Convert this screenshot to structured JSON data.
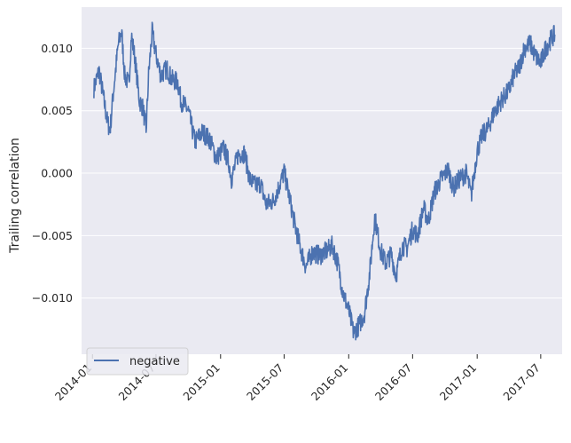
{
  "chart_data": {
    "type": "line",
    "title": "",
    "xlabel": "",
    "ylabel": "Trailing correlation",
    "xlim": [
      "2013-12-01",
      "2017-08-31"
    ],
    "ylim": [
      -0.0145,
      0.0133
    ],
    "grid": true,
    "legend_position": "lower-left",
    "colors": {
      "series": "#4c72b0",
      "plot_background": "#eaeaf2",
      "grid": "#ffffff"
    },
    "x_ticks": [
      {
        "value": "2014-01-01",
        "label": "2014-01"
      },
      {
        "value": "2014-07-01",
        "label": "2014-07"
      },
      {
        "value": "2015-01-01",
        "label": "2015-01"
      },
      {
        "value": "2015-07-01",
        "label": "2015-07"
      },
      {
        "value": "2016-01-01",
        "label": "2016-01"
      },
      {
        "value": "2016-07-01",
        "label": "2016-07"
      },
      {
        "value": "2017-01-01",
        "label": "2017-01"
      },
      {
        "value": "2017-07-01",
        "label": "2017-07"
      }
    ],
    "y_ticks": [
      {
        "value": 0.01,
        "label": "0.010"
      },
      {
        "value": 0.005,
        "label": "0.005"
      },
      {
        "value": 0.0,
        "label": "0.000"
      },
      {
        "value": -0.005,
        "label": "−0.005"
      },
      {
        "value": -0.01,
        "label": "−0.010"
      }
    ],
    "series": [
      {
        "name": "negative",
        "points": [
          [
            "2014-01-05",
            0.0068
          ],
          [
            "2014-01-20",
            0.0082
          ],
          [
            "2014-02-03",
            0.0058
          ],
          [
            "2014-02-12",
            0.0042
          ],
          [
            "2014-02-20",
            0.0034
          ],
          [
            "2014-03-01",
            0.0063
          ],
          [
            "2014-03-15",
            0.0102
          ],
          [
            "2014-03-25",
            0.0114
          ],
          [
            "2014-04-03",
            0.0078
          ],
          [
            "2014-04-15",
            0.0071
          ],
          [
            "2014-04-22",
            0.011
          ],
          [
            "2014-05-01",
            0.0094
          ],
          [
            "2014-05-15",
            0.0058
          ],
          [
            "2014-05-25",
            0.0052
          ],
          [
            "2014-06-03",
            0.0034
          ],
          [
            "2014-06-10",
            0.0079
          ],
          [
            "2014-06-20",
            0.0113
          ],
          [
            "2014-07-01",
            0.0095
          ],
          [
            "2014-07-15",
            0.0078
          ],
          [
            "2014-08-01",
            0.0084
          ],
          [
            "2014-08-15",
            0.0075
          ],
          [
            "2014-09-01",
            0.0073
          ],
          [
            "2014-09-10",
            0.0058
          ],
          [
            "2014-10-01",
            0.005
          ],
          [
            "2014-10-20",
            0.0025
          ],
          [
            "2014-11-10",
            0.0033
          ],
          [
            "2014-12-01",
            0.0027
          ],
          [
            "2014-12-20",
            0.0012
          ],
          [
            "2015-01-10",
            0.002
          ],
          [
            "2015-01-25",
            0.0008
          ],
          [
            "2015-02-01",
            -0.0005
          ],
          [
            "2015-02-20",
            0.0015
          ],
          [
            "2015-03-10",
            0.0016
          ],
          [
            "2015-03-25",
            -0.0005
          ],
          [
            "2015-04-10",
            -0.001
          ],
          [
            "2015-04-25",
            -0.0008
          ],
          [
            "2015-05-10",
            -0.0025
          ],
          [
            "2015-06-01",
            -0.0022
          ],
          [
            "2015-06-15",
            -0.0012
          ],
          [
            "2015-07-01",
            0.0001
          ],
          [
            "2015-07-15",
            -0.0018
          ],
          [
            "2015-08-01",
            -0.0042
          ],
          [
            "2015-08-15",
            -0.0058
          ],
          [
            "2015-09-01",
            -0.0075
          ],
          [
            "2015-09-20",
            -0.0063
          ],
          [
            "2015-10-10",
            -0.0066
          ],
          [
            "2015-11-01",
            -0.0062
          ],
          [
            "2015-11-15",
            -0.0058
          ],
          [
            "2015-12-01",
            -0.0072
          ],
          [
            "2015-12-15",
            -0.0095
          ],
          [
            "2016-01-01",
            -0.011
          ],
          [
            "2016-01-15",
            -0.0128
          ],
          [
            "2016-02-01",
            -0.0121
          ],
          [
            "2016-02-15",
            -0.0112
          ],
          [
            "2016-03-01",
            -0.008
          ],
          [
            "2016-03-15",
            -0.0035
          ],
          [
            "2016-04-01",
            -0.0062
          ],
          [
            "2016-04-15",
            -0.0072
          ],
          [
            "2016-05-01",
            -0.0065
          ],
          [
            "2016-05-15",
            -0.0082
          ],
          [
            "2016-06-01",
            -0.0058
          ],
          [
            "2016-06-15",
            -0.006
          ],
          [
            "2016-07-01",
            -0.0045
          ],
          [
            "2016-07-15",
            -0.005
          ],
          [
            "2016-08-01",
            -0.0028
          ],
          [
            "2016-08-15",
            -0.0038
          ],
          [
            "2016-09-01",
            -0.0015
          ],
          [
            "2016-09-20",
            -0.0005
          ],
          [
            "2016-10-10",
            0.0003
          ],
          [
            "2016-10-25",
            -0.0012
          ],
          [
            "2016-11-10",
            -0.0005
          ],
          [
            "2016-12-01",
            0.0
          ],
          [
            "2016-12-15",
            -0.0018
          ],
          [
            "2017-01-01",
            0.0018
          ],
          [
            "2017-01-15",
            0.003
          ],
          [
            "2017-02-01",
            0.0036
          ],
          [
            "2017-02-20",
            0.005
          ],
          [
            "2017-03-10",
            0.0058
          ],
          [
            "2017-04-01",
            0.0066
          ],
          [
            "2017-04-15",
            0.0078
          ],
          [
            "2017-05-01",
            0.0085
          ],
          [
            "2017-05-15",
            0.01
          ],
          [
            "2017-06-01",
            0.0104
          ],
          [
            "2017-06-15",
            0.0094
          ],
          [
            "2017-07-01",
            0.0088
          ],
          [
            "2017-07-15",
            0.01
          ],
          [
            "2017-08-01",
            0.0108
          ],
          [
            "2017-08-10",
            0.0111
          ]
        ]
      }
    ]
  }
}
